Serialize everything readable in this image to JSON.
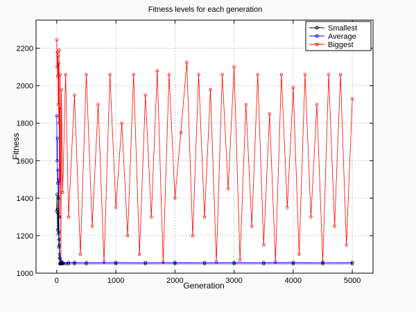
{
  "chart_data": {
    "type": "line",
    "title": "Fitness levels for each generation",
    "xlabel": "Generation",
    "ylabel": "Fitness",
    "xlim": [
      -350,
      5350
    ],
    "ylim": [
      1000,
      2350
    ],
    "xticks": [
      0,
      1000,
      2000,
      3000,
      4000,
      5000
    ],
    "yticks": [
      1000,
      1200,
      1400,
      1600,
      1800,
      2000,
      2200
    ],
    "grid": true,
    "legend_position": "top-right",
    "marker": "circle",
    "series": [
      {
        "name": "Smallest",
        "color": "#000000",
        "x": [
          0,
          5,
          10,
          15,
          20,
          25,
          30,
          35,
          40,
          45,
          50,
          60,
          70,
          80,
          90,
          100,
          150,
          200,
          300,
          500,
          1000,
          1500,
          2000,
          2500,
          3000,
          3500,
          4000,
          4500,
          5000
        ],
        "y": [
          1330,
          1420,
          1340,
          1230,
          1320,
          1210,
          1400,
          1140,
          1180,
          1080,
          1050,
          1050,
          1050,
          1050,
          1050,
          1050,
          1050,
          1050,
          1050,
          1050,
          1050,
          1050,
          1050,
          1050,
          1050,
          1050,
          1050,
          1050,
          1050
        ]
      },
      {
        "name": "Average",
        "color": "#0000ff",
        "x": [
          0,
          5,
          10,
          15,
          20,
          25,
          30,
          35,
          40,
          45,
          50,
          60,
          70,
          80,
          100,
          200,
          300,
          500,
          1000,
          1500,
          2000,
          2500,
          3000,
          3500,
          4000,
          4500,
          5000
        ],
        "y": [
          1840,
          1600,
          1720,
          1480,
          1550,
          1400,
          1500,
          1300,
          1220,
          1150,
          1100,
          1080,
          1065,
          1060,
          1058,
          1057,
          1058,
          1057,
          1058,
          1057,
          1058,
          1057,
          1058,
          1057,
          1058,
          1057,
          1058
        ]
      },
      {
        "name": "Biggest",
        "color": "#ff0000",
        "x": [
          0,
          5,
          10,
          15,
          20,
          25,
          30,
          35,
          40,
          45,
          50,
          55,
          60,
          70,
          80,
          100,
          150,
          200,
          300,
          400,
          500,
          600,
          700,
          800,
          900,
          1000,
          1100,
          1200,
          1300,
          1400,
          1500,
          1600,
          1700,
          1800,
          1900,
          2000,
          2100,
          2200,
          2300,
          2400,
          2500,
          2600,
          2700,
          2800,
          2900,
          3000,
          3100,
          3200,
          3300,
          3400,
          3500,
          3600,
          3700,
          3800,
          3900,
          4000,
          4100,
          4200,
          4300,
          4400,
          4500,
          4600,
          4700,
          4800,
          4900,
          5000
        ],
        "y": [
          2245,
          2100,
          2180,
          2050,
          2160,
          1900,
          2120,
          1800,
          2190,
          1300,
          1880,
          1480,
          2060,
          1060,
          1980,
          1430,
          2060,
          1300,
          1950,
          1100,
          2060,
          1250,
          1900,
          1060,
          2060,
          1350,
          1800,
          1200,
          2060,
          1100,
          1950,
          1300,
          2080,
          1060,
          2060,
          1400,
          1750,
          2125,
          1200,
          2060,
          1300,
          1980,
          1060,
          2060,
          1450,
          2100,
          1070,
          1900,
          1250,
          2060,
          1150,
          1850,
          1060,
          2060,
          1350,
          1990,
          1100,
          2060,
          1300,
          1900,
          1060,
          2060,
          1250,
          2060,
          1150,
          1930
        ]
      }
    ]
  }
}
